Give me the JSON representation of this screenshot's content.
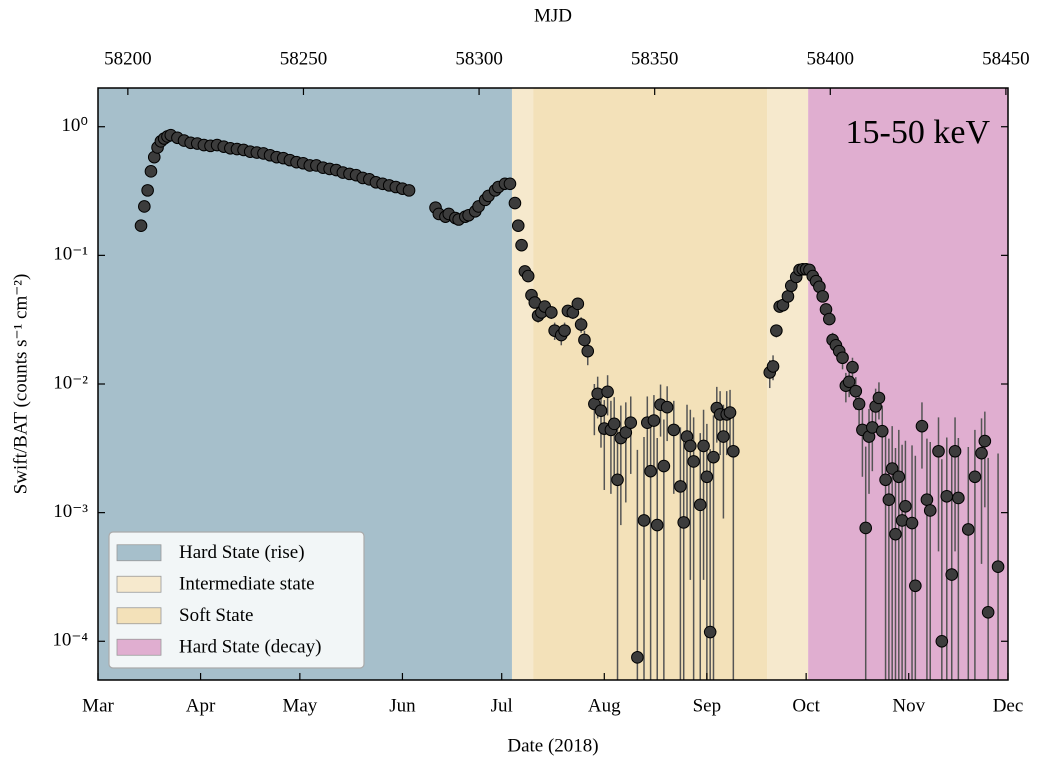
{
  "chart_data": {
    "type": "scatter",
    "title": "MJD",
    "xlabel": "Date (2018)",
    "ylabel": "Swift/BAT (counts s⁻¹ cm⁻²)",
    "annotation": "15-50 keV",
    "xlim": [
      58178,
      58453
    ],
    "xticks": [
      {
        "value": 58178,
        "label": "Mar"
      },
      {
        "value": 58209,
        "label": "Apr"
      },
      {
        "value": 58239,
        "label": "May"
      },
      {
        "value": 58270,
        "label": "Jun"
      },
      {
        "value": 58300,
        "label": "Jul"
      },
      {
        "value": 58331,
        "label": "Aug"
      },
      {
        "value": 58362,
        "label": "Sep"
      },
      {
        "value": 58392,
        "label": "Oct"
      },
      {
        "value": 58423,
        "label": "Nov"
      },
      {
        "value": 58453,
        "label": "Dec"
      }
    ],
    "x2lim": [
      58191.5,
      58450.6
    ],
    "x2ticks": [
      58200,
      58250,
      58300,
      58350,
      58400,
      58450
    ],
    "ylim": [
      5e-05,
      2
    ],
    "log_y": true,
    "yticks": [
      {
        "value": 0.0001,
        "label": "10⁻⁴"
      },
      {
        "value": 0.001,
        "label": "10⁻³"
      },
      {
        "value": 0.01,
        "label": "10⁻²"
      },
      {
        "value": 0.1,
        "label": "10⁻¹"
      },
      {
        "value": 1,
        "label": "10⁰"
      }
    ],
    "legend_position": "lower left",
    "states": [
      {
        "label": "Hard State (rise)",
        "color": "#a6bfcb",
        "spans": [
          [
            58178,
            58303.1
          ]
        ]
      },
      {
        "label": "Intermediate state",
        "color": "#f6e9cd",
        "spans": [
          [
            58303.1,
            58309.5
          ],
          [
            58380.2,
            58392.6
          ]
        ]
      },
      {
        "label": "Soft State",
        "color": "#f3e1b9",
        "spans": [
          [
            58309.5,
            58380.2
          ]
        ]
      },
      {
        "label": "Hard State (decay)",
        "color": "#e0aed0",
        "spans": [
          [
            58392.6,
            58453
          ]
        ]
      }
    ],
    "series": [
      {
        "color": "#3c3c3c",
        "x": [
          58191,
          58192,
          58193,
          58194,
          58195,
          58196,
          58197,
          58198,
          58199,
          58200,
          58202,
          58204,
          58206,
          58208,
          58210,
          58212,
          58214,
          58216,
          58218,
          58220,
          58222,
          58224,
          58226,
          58228,
          58230,
          58232,
          58234,
          58236,
          58238,
          58240,
          58242,
          58244,
          58246,
          58248,
          58250,
          58252,
          58254,
          58256,
          58258,
          58260,
          58262,
          58264,
          58266,
          58268,
          58270,
          58272,
          58280,
          58281,
          58283,
          58284,
          58286,
          58287,
          58289,
          58290,
          58292,
          58293,
          58295,
          58296,
          58298,
          58299,
          58301,
          58302.5,
          58304,
          58305,
          58306,
          58307,
          58308,
          58309,
          58310,
          58311,
          58312,
          58313,
          58315,
          58316,
          58318,
          58319,
          58320,
          58321.5,
          58323,
          58324,
          58325,
          58326,
          58328,
          58329,
          58330,
          58331,
          58332,
          58333,
          58334,
          58335,
          58336,
          58337.5,
          58339,
          58341,
          58343,
          58344,
          58345,
          58346,
          58347,
          58348,
          58349,
          58350,
          58352,
          58354,
          58355,
          58356,
          58357,
          58358,
          58360,
          58361,
          58362,
          58363,
          58364,
          58365,
          58366,
          58367,
          58368,
          58369,
          58370,
          58381,
          58382,
          58383,
          58384,
          58385,
          58386.5,
          58387.5,
          58389,
          58390,
          58391,
          58392,
          58393,
          58394,
          58395,
          58396,
          58397,
          58398,
          58399,
          58400,
          58401,
          58402,
          58403,
          58404,
          58405,
          58406,
          58407,
          58408,
          58409,
          58410,
          58411,
          58412,
          58413,
          58414,
          58415,
          58416,
          58417,
          58418,
          58419,
          58420,
          58421,
          58422,
          58424,
          58425,
          58427,
          58428.5,
          58429.5,
          58432,
          58433,
          58434.5,
          58436,
          58437,
          58438,
          58441,
          58443,
          58445,
          58446,
          58447,
          58450
        ],
        "values": [
          0.17,
          0.24,
          0.32,
          0.45,
          0.58,
          0.69,
          0.77,
          0.81,
          0.84,
          0.86,
          0.82,
          0.78,
          0.75,
          0.74,
          0.72,
          0.71,
          0.72,
          0.7,
          0.68,
          0.67,
          0.66,
          0.64,
          0.63,
          0.62,
          0.6,
          0.58,
          0.57,
          0.55,
          0.53,
          0.52,
          0.5,
          0.5,
          0.48,
          0.47,
          0.46,
          0.44,
          0.43,
          0.42,
          0.4,
          0.39,
          0.37,
          0.36,
          0.35,
          0.34,
          0.33,
          0.32,
          0.235,
          0.21,
          0.2,
          0.21,
          0.195,
          0.19,
          0.2,
          0.205,
          0.22,
          0.24,
          0.27,
          0.29,
          0.32,
          0.34,
          0.36,
          0.36,
          0.255,
          0.17,
          0.12,
          0.075,
          0.069,
          0.049,
          0.043,
          0.034,
          0.036,
          0.04,
          0.036,
          0.026,
          0.024,
          0.026,
          0.037,
          0.036,
          0.042,
          0.029,
          0.022,
          0.018,
          0.007,
          0.0084,
          0.0062,
          0.0045,
          0.0087,
          0.0044,
          0.0049,
          0.0018,
          0.0038,
          0.0042,
          0.005,
          7.5e-05,
          0.00087,
          0.005,
          0.0021,
          0.0052,
          0.0008,
          0.0069,
          0.0023,
          0.0066,
          0.0044,
          0.0016,
          0.00084,
          0.0039,
          0.0033,
          0.0025,
          0.00115,
          0.0033,
          0.0019,
          0.000118,
          0.0027,
          0.0065,
          0.0058,
          0.0039,
          0.0058,
          0.006,
          0.003,
          0.0123,
          0.0137,
          0.026,
          0.04,
          0.041,
          0.048,
          0.058,
          0.068,
          0.077,
          0.078,
          0.078,
          0.077,
          0.069,
          0.063,
          0.057,
          0.048,
          0.038,
          0.032,
          0.022,
          0.02,
          0.018,
          0.016,
          0.0097,
          0.0104,
          0.0135,
          0.0088,
          0.007,
          0.0044,
          0.00076,
          0.0039,
          0.0046,
          0.0067,
          0.0078,
          0.0043,
          0.0018,
          0.00126,
          0.0022,
          0.00068,
          0.0019,
          0.00087,
          0.00112,
          0.00083,
          0.00027,
          0.0047,
          0.00126,
          0.00104,
          0.003,
          0.0001,
          0.00134,
          0.00033,
          0.003,
          0.0013,
          0.00074,
          0.0019,
          0.0029,
          0.0036,
          0.000168,
          0.00038
        ],
        "errors": [
          0.005,
          0.005,
          0.005,
          0.005,
          0.005,
          0.005,
          0.005,
          0.005,
          0.005,
          0.005,
          0.005,
          0.005,
          0.005,
          0.005,
          0.005,
          0.005,
          0.005,
          0.005,
          0.005,
          0.005,
          0.005,
          0.005,
          0.005,
          0.005,
          0.005,
          0.005,
          0.005,
          0.005,
          0.005,
          0.005,
          0.005,
          0.005,
          0.005,
          0.005,
          0.005,
          0.005,
          0.005,
          0.005,
          0.005,
          0.005,
          0.005,
          0.005,
          0.005,
          0.005,
          0.005,
          0.005,
          0.005,
          0.005,
          0.005,
          0.005,
          0.005,
          0.005,
          0.005,
          0.005,
          0.005,
          0.005,
          0.005,
          0.005,
          0.005,
          0.005,
          0.005,
          0.005,
          0.005,
          0.005,
          0.005,
          0.005,
          0.005,
          0.004,
          0.004,
          0.004,
          0.004,
          0.004,
          0.004,
          0.004,
          0.004,
          0.004,
          0.004,
          0.004,
          0.004,
          0.004,
          0.004,
          0.004,
          0.003,
          0.003,
          0.003,
          0.003,
          0.003,
          0.003,
          0.003,
          0.003,
          0.003,
          0.003,
          0.003,
          0.003,
          0.003,
          0.003,
          0.003,
          0.003,
          0.003,
          0.003,
          0.003,
          0.003,
          0.003,
          0.003,
          0.003,
          0.003,
          0.003,
          0.003,
          0.003,
          0.003,
          0.003,
          0.003,
          0.003,
          0.003,
          0.003,
          0.003,
          0.003,
          0.003,
          0.003,
          0.003,
          0.003,
          0.003,
          0.003,
          0.003,
          0.003,
          0.003,
          0.003,
          0.003,
          0.003,
          0.003,
          0.003,
          0.003,
          0.003,
          0.003,
          0.003,
          0.003,
          0.003,
          0.003,
          0.003,
          0.003,
          0.003,
          0.0025,
          0.0025,
          0.0025,
          0.0025,
          0.0025,
          0.0025,
          0.0025,
          0.0025,
          0.0025,
          0.0025,
          0.0025,
          0.0025,
          0.0025,
          0.0025,
          0.0025,
          0.0025,
          0.0025,
          0.0025,
          0.0025,
          0.0025,
          0.0025,
          0.0025,
          0.0025,
          0.0025,
          0.0025,
          0.0025,
          0.0025,
          0.0025,
          0.0025,
          0.0025,
          0.0025,
          0.0025,
          0.0025,
          0.0025,
          0.0025,
          0.0025
        ]
      }
    ]
  }
}
